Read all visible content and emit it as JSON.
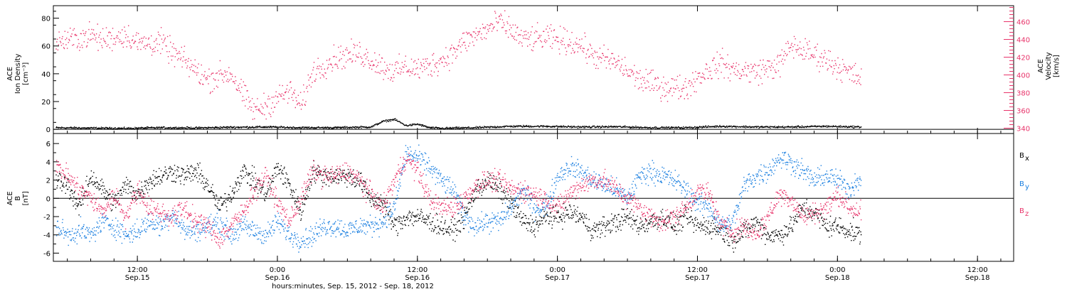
{
  "chart_data": [
    {
      "type": "scatter",
      "ylabel_left": [
        "ACE",
        "Ion Density",
        "[cm⁻³]"
      ],
      "ylabel_right": [
        "ACE",
        "Velocity",
        "[km/s]"
      ],
      "yticks_left": [
        "0",
        "20",
        "40",
        "60",
        "80"
      ],
      "ylim_left": [
        -3,
        89
      ],
      "yticks_right": [
        "340",
        "360",
        "380",
        "400",
        "420",
        "440",
        "460"
      ],
      "ylim_right": [
        334,
        478
      ],
      "series": [
        {
          "axis": "left",
          "color": "#000000",
          "x": [
            0,
            3,
            6,
            9,
            12,
            15,
            18,
            21,
            24,
            27,
            28,
            29,
            30,
            31,
            32,
            33,
            36,
            39,
            42,
            45,
            48,
            51,
            54,
            57,
            60,
            63,
            66,
            69
          ],
          "y": [
            1.5,
            1.2,
            1.0,
            1.5,
            1.3,
            1.8,
            2.0,
            1.5,
            1.5,
            2.0,
            6.0,
            7.5,
            3.0,
            4.0,
            1.5,
            1.0,
            1.5,
            2.5,
            2.5,
            2.0,
            2.2,
            1.5,
            1.5,
            2.5,
            2.0,
            2.0,
            2.5,
            2.0
          ]
        },
        {
          "axis": "right",
          "color": "#e8336a",
          "x": [
            0,
            2,
            3,
            4,
            6,
            7,
            9,
            10,
            11,
            12,
            13,
            14,
            15,
            16,
            17,
            18,
            19,
            20,
            21,
            22,
            24,
            26,
            28,
            29,
            30,
            31,
            32,
            33,
            34,
            35,
            36,
            37,
            38,
            39,
            40,
            42,
            44,
            45,
            46,
            48,
            50,
            52,
            54,
            55,
            56,
            57,
            58,
            60,
            62,
            63,
            64,
            66,
            67,
            68,
            69
          ],
          "y": [
            437,
            442,
            445,
            440,
            446,
            436,
            437,
            425,
            416,
            405,
            395,
            400,
            402,
            378,
            360,
            366,
            375,
            382,
            365,
            404,
            420,
            425,
            410,
            404,
            410,
            407,
            411,
            417,
            425,
            438,
            445,
            452,
            460,
            451,
            440,
            442,
            438,
            434,
            422,
            414,
            395,
            387,
            386,
            398,
            407,
            414,
            406,
            404,
            412,
            434,
            428,
            418,
            410,
            402,
            396
          ]
        }
      ]
    },
    {
      "type": "scatter",
      "ylabel": [
        "ACE",
        "B",
        "[nT]"
      ],
      "yticks": [
        "-6",
        "-4",
        "-2",
        "0",
        "2",
        "4",
        "6"
      ],
      "ylim": [
        -6.9,
        7.1
      ],
      "legend_placement": "right",
      "series": [
        {
          "name_main": "B",
          "name_sub": "x",
          "color": "#000000",
          "x": [
            0,
            1,
            2,
            3,
            4,
            5,
            6,
            7,
            8,
            9,
            10,
            11,
            12,
            13,
            14,
            15,
            16,
            17,
            18,
            19,
            20,
            21,
            22,
            23,
            24,
            25,
            26,
            27,
            28,
            29,
            30,
            31,
            32,
            33,
            34,
            35,
            36,
            37,
            38,
            39,
            40,
            41,
            42,
            43,
            44,
            45,
            46,
            47,
            48,
            49,
            50,
            51,
            52,
            53,
            54,
            55,
            56,
            57,
            58,
            59,
            60,
            61,
            62,
            63,
            64,
            65,
            66,
            67,
            68,
            69
          ],
          "y": [
            2,
            1.5,
            -1,
            2.5,
            1,
            -0.5,
            1.5,
            0.5,
            2,
            2.5,
            3,
            2.5,
            3,
            1.5,
            -1,
            0.5,
            3,
            2,
            0.5,
            3.5,
            1.5,
            -1.5,
            3,
            2.5,
            2.5,
            2.5,
            2,
            0,
            -0.5,
            -3,
            -2,
            -2,
            -2.5,
            -3,
            -3.5,
            -2,
            1,
            2,
            1,
            -0.5,
            -2.5,
            -3,
            -2,
            -2,
            -1.5,
            -2,
            -3.5,
            -3,
            -2.5,
            -2,
            -3,
            -2.5,
            -2,
            -3,
            -2,
            -3,
            -3,
            -3.5,
            -4.5,
            -3.5,
            -2.5,
            -4,
            -4,
            -3,
            -1,
            -1.5,
            -3,
            -3,
            -3.5,
            -4
          ]
        },
        {
          "name_main": "B",
          "name_sub": "y",
          "color": "#1a7fe0",
          "x": [
            0,
            1,
            2,
            3,
            4,
            5,
            6,
            7,
            8,
            9,
            10,
            11,
            12,
            13,
            14,
            15,
            16,
            17,
            18,
            19,
            20,
            21,
            22,
            23,
            24,
            25,
            26,
            27,
            28,
            29,
            30,
            31,
            32,
            33,
            34,
            35,
            36,
            37,
            38,
            39,
            40,
            41,
            42,
            43,
            44,
            45,
            46,
            47,
            48,
            49,
            50,
            51,
            52,
            53,
            54,
            55,
            56,
            57,
            58,
            59,
            60,
            61,
            62,
            63,
            64,
            65,
            66,
            67,
            68,
            69
          ],
          "y": [
            -3,
            -4,
            -3.5,
            -4,
            -2.5,
            -3,
            -4,
            -3.5,
            -2.5,
            -3,
            -1.5,
            -3.5,
            -3.5,
            -3,
            -2.5,
            -4,
            -3,
            -3.5,
            -4,
            -2.5,
            -4,
            -4.5,
            -4,
            -3,
            -3,
            -3.5,
            -3,
            -3,
            -2.5,
            -1,
            5,
            4.5,
            3.5,
            2,
            1,
            -2,
            -3,
            -2.5,
            -2.5,
            -1,
            1,
            -1,
            -1,
            2.5,
            3.5,
            3,
            2,
            1.5,
            1,
            0,
            2.5,
            3,
            2.5,
            2,
            1,
            -0.5,
            -1,
            -3,
            -2.5,
            1.5,
            2.5,
            3,
            4.5,
            4,
            3,
            2,
            2.5,
            2,
            1,
            2.5
          ]
        },
        {
          "name_main": "B",
          "name_sub": "z",
          "color": "#e8336a",
          "x": [
            0,
            1,
            2,
            3,
            4,
            5,
            6,
            7,
            8,
            9,
            10,
            11,
            12,
            13,
            14,
            15,
            16,
            17,
            18,
            19,
            20,
            21,
            22,
            23,
            24,
            25,
            26,
            27,
            28,
            29,
            30,
            31,
            32,
            33,
            34,
            35,
            36,
            37,
            38,
            39,
            40,
            41,
            42,
            43,
            44,
            45,
            46,
            47,
            48,
            49,
            50,
            51,
            52,
            53,
            54,
            55,
            56,
            57,
            58,
            59,
            60,
            61,
            62,
            63,
            64,
            65,
            66,
            67,
            68,
            69
          ],
          "y": [
            3.5,
            2.5,
            1,
            0,
            -1.5,
            0.5,
            -2,
            1,
            -1,
            -1.5,
            -2,
            -1,
            -2.5,
            -3,
            -4.5,
            -3,
            -1.5,
            1,
            2.5,
            -0.5,
            -2.5,
            0,
            3,
            2.5,
            2.5,
            3,
            2,
            0.5,
            -1,
            2,
            4.5,
            3,
            0,
            -1,
            -1,
            0,
            1.5,
            2,
            2,
            1,
            1,
            0.5,
            0,
            -1,
            0.5,
            1.5,
            2,
            2,
            1,
            0,
            -1,
            -2,
            -2.5,
            -2,
            -1,
            1,
            0.5,
            -3,
            -3.5,
            -3,
            -4,
            -2,
            0.5,
            0,
            -2,
            -1.5,
            -1,
            0.5,
            -1,
            -1.5
          ]
        }
      ]
    }
  ],
  "xaxis": {
    "ticks": [
      {
        "hours": 7,
        "time": "12:00",
        "date": "Sep.15"
      },
      {
        "hours": 19,
        "time": "0:00",
        "date": "Sep.16"
      },
      {
        "hours": 31,
        "time": "12:00",
        "date": "Sep.16"
      },
      {
        "hours": 43,
        "time": "0:00",
        "date": "Sep.17"
      },
      {
        "hours": 55,
        "time": "12:00",
        "date": "Sep.17"
      },
      {
        "hours": 67,
        "time": "0:00",
        "date": "Sep.18"
      },
      {
        "hours": 79,
        "time": "12:00",
        "date": "Sep.18"
      }
    ],
    "xlabel": "hours:minutes, Sep. 15, 2012 - Sep. 18, 2012"
  }
}
